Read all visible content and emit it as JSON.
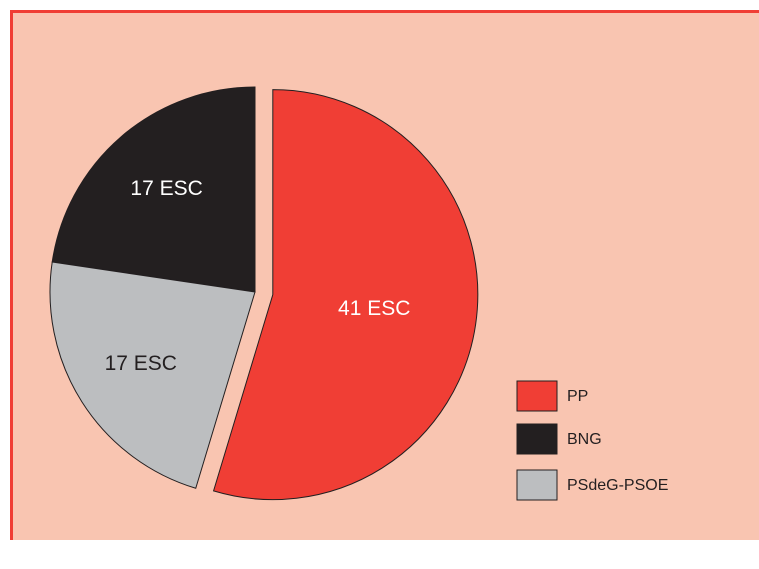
{
  "chart_data": {
    "type": "pie",
    "categories": [
      "PP",
      "BNG",
      "PSdeG-PSOE"
    ],
    "values": [
      41,
      17,
      17
    ],
    "value_labels": [
      "41 ESC",
      "17 ESC",
      "17 ESC"
    ],
    "colors": [
      "#f03e35",
      "#231f20",
      "#bcbec0"
    ],
    "legend": "right"
  }
}
